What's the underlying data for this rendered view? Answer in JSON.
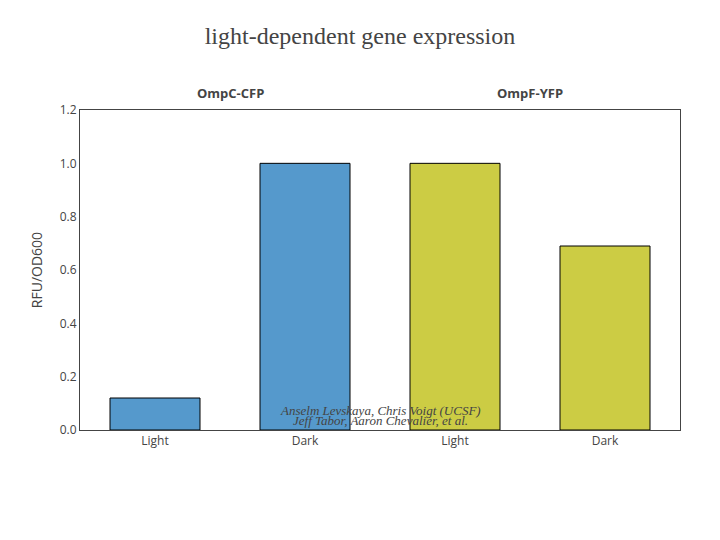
{
  "chart_data": {
    "type": "bar",
    "title": "light-dependent gene expression",
    "categories": [
      "Light",
      "Dark",
      "Light",
      "Dark"
    ],
    "values": [
      0.12,
      1.0,
      1.0,
      0.69
    ],
    "colors": [
      "#5599cc",
      "#5599cc",
      "#cccc44",
      "#cccc44"
    ],
    "ylabel": "RFU/OD600",
    "ylim": [
      0,
      1.2
    ],
    "yticks": [
      {
        "value": 0,
        "label": "0.0"
      },
      0.2,
      0.4,
      0.6,
      0.8,
      {
        "value": 1.0,
        "label": "1.0"
      },
      1.2
    ],
    "group_labels": [
      "OmpC-CFP",
      "OmpF-YFP"
    ],
    "annotations": [
      "Anselm Levskaya, Chris Voigt (UCSF)",
      "Jeff Tabor, Aaron Chevalier, et al."
    ],
    "grid": false
  }
}
